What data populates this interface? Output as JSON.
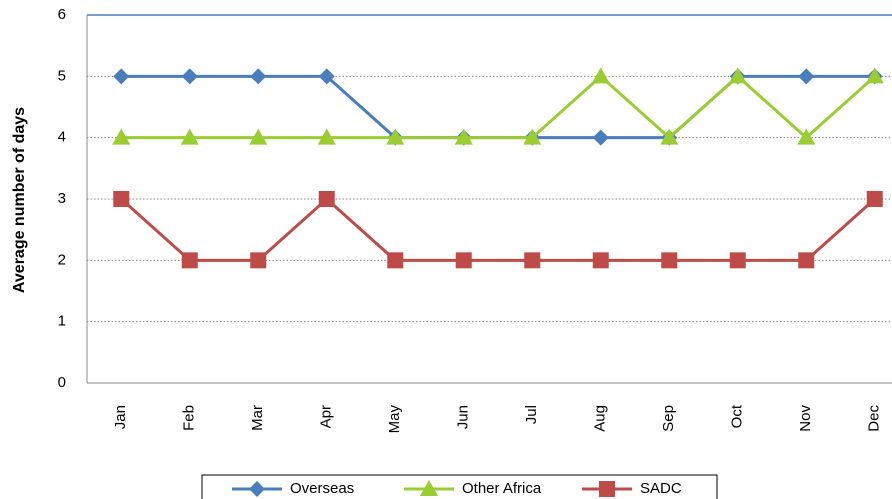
{
  "chart_data": {
    "type": "line",
    "y_label": "Average number of days",
    "categories": [
      "Jan",
      "Feb",
      "Mar",
      "Apr",
      "May",
      "Jun",
      "Jul",
      "Aug",
      "Sep",
      "Oct",
      "Nov",
      "Dec"
    ],
    "series": [
      {
        "name": "Overseas",
        "color": "#4a7ebb",
        "marker": "diamond",
        "values": [
          5,
          5,
          5,
          5,
          4,
          4,
          4,
          4,
          4,
          5,
          5,
          5
        ]
      },
      {
        "name": "Other Africa",
        "color": "#9acd32",
        "marker": "triangle",
        "values": [
          4,
          4,
          4,
          4,
          4,
          4,
          4,
          5,
          4,
          5,
          4,
          5
        ]
      },
      {
        "name": "SADC",
        "color": "#be4b48",
        "marker": "square",
        "values": [
          3,
          2,
          2,
          3,
          2,
          2,
          2,
          2,
          2,
          2,
          2,
          3
        ]
      }
    ],
    "ylim": [
      0,
      6
    ],
    "yticks": [
      0,
      1,
      2,
      3,
      4,
      5,
      6
    ],
    "grid": true,
    "legend": "bottom"
  }
}
